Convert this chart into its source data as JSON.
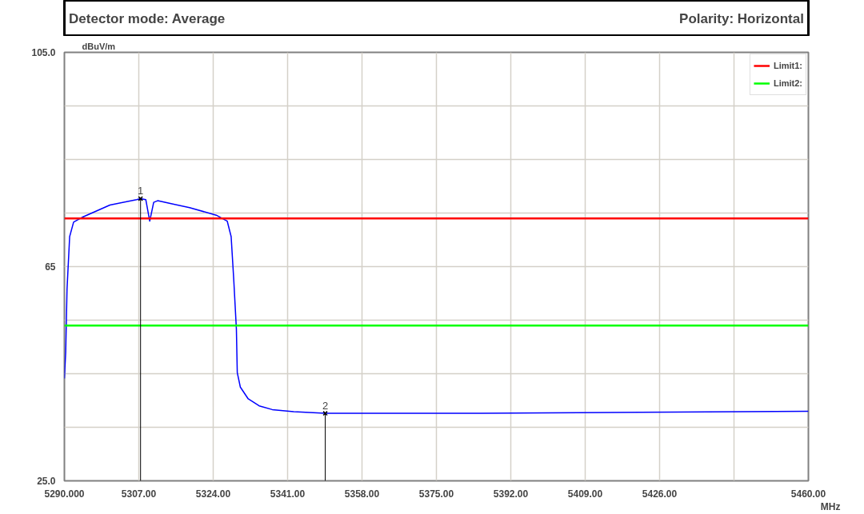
{
  "chart_data": {
    "type": "line",
    "title": "Detector mode: Average",
    "subtitle": "Polarity: Horizontal",
    "xlabel": "MHz",
    "ylabel": "dBuV/m",
    "xlim": [
      5290,
      5460
    ],
    "ylim": [
      25,
      105
    ],
    "xticks": [
      {
        "value": 5290,
        "label": "5290.000"
      },
      {
        "value": 5307,
        "label": "5307.00"
      },
      {
        "value": 5324,
        "label": "5324.00"
      },
      {
        "value": 5341,
        "label": "5341.00"
      },
      {
        "value": 5358,
        "label": "5358.00"
      },
      {
        "value": 5375,
        "label": "5375.00"
      },
      {
        "value": 5392,
        "label": "5392.00"
      },
      {
        "value": 5409,
        "label": "5409.00"
      },
      {
        "value": 5426,
        "label": "5426.00"
      },
      {
        "value": 5443,
        "label": null
      },
      {
        "value": 5460,
        "label": "5460.00"
      }
    ],
    "yticks": [
      {
        "value": 25,
        "label": "25.0"
      },
      {
        "value": 35,
        "label": null
      },
      {
        "value": 45,
        "label": null
      },
      {
        "value": 55,
        "label": null
      },
      65,
      {
        "value": 75,
        "label": null
      },
      {
        "value": 85,
        "label": null
      },
      {
        "value": 95,
        "label": null
      },
      {
        "value": 105,
        "label": "105.0"
      }
    ],
    "grid": true,
    "legend": "top right",
    "marker": "none",
    "line_style": "solid",
    "series": [
      {
        "color": "#0000ff",
        "x": [
          5290,
          5290.3,
          5290.6,
          5291.2,
          5292.1,
          5294.3,
          5300.4,
          5306.5,
          5307.4,
          5308.6,
          5309.5,
          5310.4,
          5311.3,
          5318.6,
          5324.7,
          5327.2,
          5328.1,
          5328.7,
          5329.3,
          5329.5,
          5330.2,
          5332.0,
          5334.5,
          5337.5,
          5342.4,
          5349.6,
          5385.1,
          5421.6,
          5460
        ],
        "values": [
          44.1,
          49.0,
          60.8,
          70.6,
          73.3,
          74.3,
          76.5,
          77.5,
          77.7,
          77.5,
          73.5,
          77.0,
          77.3,
          76.0,
          74.6,
          73.5,
          70.6,
          62.5,
          53.3,
          45.2,
          42.5,
          40.3,
          39.0,
          38.3,
          37.9,
          37.6,
          37.6,
          37.8,
          38.0
        ]
      },
      {
        "name": "Limit1:",
        "color": "#ff0000",
        "x": [
          5290,
          5460
        ],
        "values": [
          74,
          74
        ]
      },
      {
        "name": "Limit2:",
        "color": "#00ff00",
        "x": [
          5290,
          5460
        ],
        "values": [
          54,
          54
        ]
      }
    ],
    "annotations": [
      {
        "text": "1",
        "x": 5307.4,
        "y": 77.7
      },
      {
        "text": "2",
        "x": 5349.6,
        "y": 37.6
      }
    ]
  }
}
